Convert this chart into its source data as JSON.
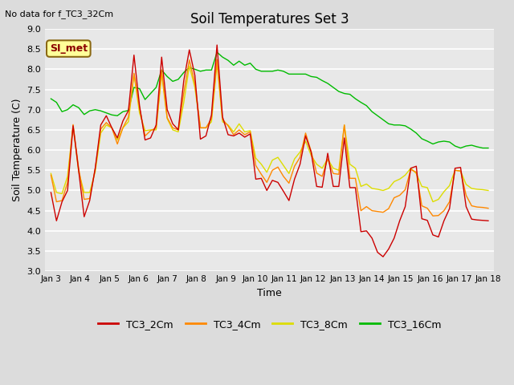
{
  "title": "Soil Temperatures Set 3",
  "top_left_text": "No data for f_TC3_32Cm",
  "xlabel": "Time",
  "ylabel": "Soil Temperature (C)",
  "ylim": [
    3.0,
    9.0
  ],
  "yticks": [
    3.0,
    3.5,
    4.0,
    4.5,
    5.0,
    5.5,
    6.0,
    6.5,
    7.0,
    7.5,
    8.0,
    8.5,
    9.0
  ],
  "xtick_labels": [
    "Jan 3",
    "Jan 4",
    "Jan 5",
    "Jan 6",
    "Jan 7",
    "Jan 8",
    "Jan 9",
    "Jan 10",
    "Jan 11",
    "Jan 12",
    "Jan 13",
    "Jan 14",
    "Jan 15",
    "Jan 16",
    "Jan 17",
    "Jan 18"
  ],
  "bg_color": "#dcdcdc",
  "plot_bg_color": "#e8e8e8",
  "annotation_box": "SI_met",
  "annotation_box_color": "#ffff99",
  "annotation_box_border": "#8b6914",
  "colors": {
    "TC3_2Cm": "#cc0000",
    "TC3_4Cm": "#ff8800",
    "TC3_8Cm": "#dddd00",
    "TC3_16Cm": "#00bb00"
  },
  "TC3_2Cm": [
    4.95,
    4.25,
    4.72,
    5.0,
    6.6,
    5.5,
    4.35,
    4.75,
    5.55,
    6.62,
    6.85,
    6.55,
    6.3,
    6.72,
    6.98,
    8.35,
    7.1,
    6.25,
    6.3,
    6.62,
    8.3,
    7.0,
    6.65,
    6.5,
    7.72,
    8.48,
    7.85,
    6.27,
    6.35,
    6.87,
    8.6,
    6.82,
    6.38,
    6.35,
    6.42,
    6.32,
    6.4,
    5.28,
    5.3,
    5.0,
    5.25,
    5.2,
    4.98,
    4.75,
    5.28,
    5.65,
    6.35,
    5.95,
    5.1,
    5.08,
    5.92,
    5.1,
    5.1,
    6.3,
    5.07,
    5.07,
    3.98,
    4.0,
    3.82,
    3.47,
    3.36,
    3.55,
    3.82,
    4.25,
    4.6,
    5.55,
    5.6,
    4.3,
    4.26,
    3.9,
    3.85,
    4.25,
    4.55,
    5.55,
    5.57,
    4.6,
    4.29,
    4.27,
    4.26,
    4.25
  ],
  "TC3_4Cm": [
    5.38,
    4.72,
    4.75,
    5.2,
    6.63,
    5.55,
    4.78,
    4.8,
    5.54,
    6.52,
    6.68,
    6.55,
    6.15,
    6.55,
    6.82,
    7.9,
    7.05,
    6.35,
    6.48,
    6.55,
    7.98,
    6.8,
    6.55,
    6.5,
    7.42,
    8.23,
    7.65,
    6.55,
    6.55,
    6.78,
    8.24,
    6.76,
    6.6,
    6.38,
    6.5,
    6.38,
    6.45,
    5.62,
    5.4,
    5.2,
    5.5,
    5.58,
    5.35,
    5.18,
    5.6,
    5.82,
    6.42,
    5.97,
    5.43,
    5.35,
    5.78,
    5.42,
    5.4,
    6.62,
    5.3,
    5.3,
    4.5,
    4.6,
    4.5,
    4.48,
    4.46,
    4.55,
    4.82,
    4.88,
    5.02,
    5.52,
    5.45,
    4.62,
    4.56,
    4.37,
    4.38,
    4.5,
    4.72,
    5.5,
    5.48,
    4.88,
    4.62,
    4.59,
    4.58,
    4.56
  ],
  "TC3_8Cm": [
    5.42,
    4.95,
    4.92,
    5.35,
    6.6,
    5.47,
    4.95,
    4.95,
    5.47,
    6.42,
    6.62,
    6.55,
    6.25,
    6.55,
    6.7,
    7.88,
    6.92,
    6.48,
    6.5,
    6.5,
    7.88,
    6.78,
    6.5,
    6.45,
    7.18,
    8.08,
    7.55,
    6.55,
    6.55,
    6.7,
    8.15,
    6.7,
    6.62,
    6.45,
    6.65,
    6.45,
    6.48,
    5.8,
    5.65,
    5.45,
    5.75,
    5.82,
    5.62,
    5.42,
    5.78,
    5.95,
    6.22,
    5.87,
    5.65,
    5.55,
    5.78,
    5.55,
    5.5,
    6.62,
    5.65,
    5.55,
    5.1,
    5.16,
    5.05,
    5.03,
    5.0,
    5.05,
    5.22,
    5.28,
    5.38,
    5.55,
    5.42,
    5.1,
    5.07,
    4.72,
    4.78,
    4.97,
    5.12,
    5.5,
    5.48,
    5.15,
    5.05,
    5.03,
    5.02,
    5.0
  ],
  "TC3_16Cm": [
    7.27,
    7.18,
    6.95,
    7.0,
    7.12,
    7.05,
    6.88,
    6.97,
    7.0,
    6.97,
    6.92,
    6.87,
    6.85,
    6.95,
    6.98,
    7.55,
    7.52,
    7.25,
    7.4,
    7.55,
    7.98,
    7.82,
    7.7,
    7.75,
    7.92,
    8.04,
    8.0,
    7.95,
    7.98,
    7.98,
    8.42,
    8.3,
    8.22,
    8.1,
    8.2,
    8.1,
    8.15,
    8.0,
    7.95,
    7.95,
    7.95,
    7.98,
    7.95,
    7.88,
    7.88,
    7.88,
    7.88,
    7.82,
    7.8,
    7.72,
    7.65,
    7.55,
    7.45,
    7.4,
    7.38,
    7.27,
    7.18,
    7.1,
    6.95,
    6.85,
    6.75,
    6.65,
    6.62,
    6.62,
    6.6,
    6.52,
    6.42,
    6.28,
    6.22,
    6.15,
    6.2,
    6.22,
    6.2,
    6.1,
    6.05,
    6.1,
    6.12,
    6.08,
    6.05,
    6.05
  ]
}
